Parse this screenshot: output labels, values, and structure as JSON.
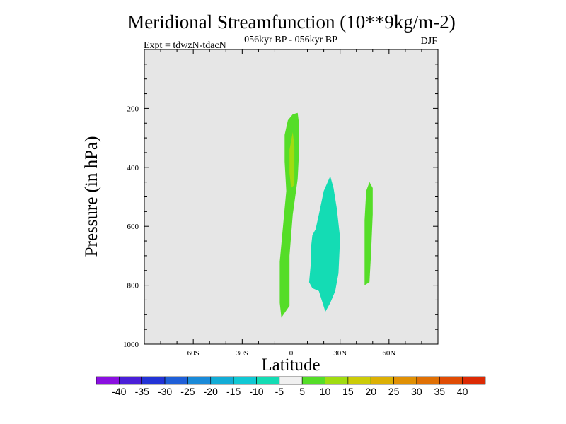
{
  "chart_data": {
    "type": "heatmap",
    "title": "Meridional Streamfunction (10**9kg/m-2)",
    "subtitle_center": "056kyr BP - 056kyr BP",
    "subtitle_left": "Expt = tdwzN-tdacN",
    "subtitle_right": "DJF",
    "xlabel": "Latitude",
    "ylabel": "Pressure (in hPa)",
    "xlim": [
      -90,
      90
    ],
    "ylim": [
      1000,
      0
    ],
    "x_ticks": [
      {
        "value": -60,
        "label": "60S"
      },
      {
        "value": -30,
        "label": "30S"
      },
      {
        "value": 0,
        "label": "0"
      },
      {
        "value": 30,
        "label": "30N"
      },
      {
        "value": 60,
        "label": "60N"
      }
    ],
    "y_ticks": [
      {
        "value": 200,
        "label": "200"
      },
      {
        "value": 400,
        "label": "400"
      },
      {
        "value": 600,
        "label": "600"
      },
      {
        "value": 800,
        "label": "800"
      },
      {
        "value": 1000,
        "label": "1000"
      }
    ],
    "background_color": "#e6e6e6",
    "colorbar": {
      "levels": [
        -40,
        -35,
        -30,
        -25,
        -20,
        -15,
        -10,
        -5,
        5,
        10,
        15,
        20,
        25,
        30,
        35,
        40
      ],
      "labels": [
        "-40",
        "-35",
        "-30",
        "-25",
        "-20",
        "-15",
        "-10",
        "-5",
        "5",
        "10",
        "15",
        "20",
        "25",
        "30",
        "35",
        "40"
      ],
      "colors": [
        "#8a0fe0",
        "#4a1fd8",
        "#2233d6",
        "#1f5fd8",
        "#1a8ad8",
        "#12acd6",
        "#10c8d4",
        "#14dcb4",
        "#f0f0f0",
        "#55dd28",
        "#a0dc10",
        "#cccc08",
        "#dcb004",
        "#e09004",
        "#e07004",
        "#e04c04",
        "#dc2a04"
      ]
    },
    "regions": [
      {
        "name": "positive 5-10",
        "level_range": [
          5,
          10
        ],
        "color": "#55dd28",
        "points": [
          [
            1,
            220
          ],
          [
            4,
            215
          ],
          [
            5,
            260
          ],
          [
            5,
            330
          ],
          [
            4,
            440
          ],
          [
            1,
            560
          ],
          [
            -1,
            700
          ],
          [
            -1,
            810
          ],
          [
            -1,
            870
          ],
          [
            -6,
            910
          ],
          [
            -7,
            860
          ],
          [
            -7,
            720
          ],
          [
            -5,
            600
          ],
          [
            -3,
            480
          ],
          [
            -4,
            380
          ],
          [
            -4,
            290
          ],
          [
            -2,
            240
          ]
        ]
      },
      {
        "name": "positive 10-15",
        "level_range": [
          10,
          15
        ],
        "color": "#a0dc10",
        "points": [
          [
            1,
            280
          ],
          [
            2,
            330
          ],
          [
            2,
            420
          ],
          [
            2,
            460
          ],
          [
            0,
            470
          ],
          [
            -1,
            420
          ],
          [
            -1,
            340
          ]
        ]
      },
      {
        "name": "positive 5-10 north",
        "level_range": [
          5,
          10
        ],
        "color": "#55dd28",
        "points": [
          [
            48,
            450
          ],
          [
            50,
            470
          ],
          [
            50,
            560
          ],
          [
            49,
            690
          ],
          [
            48,
            790
          ],
          [
            45,
            800
          ],
          [
            45,
            690
          ],
          [
            45,
            580
          ],
          [
            46,
            480
          ]
        ]
      },
      {
        "name": "negative -10 to -5",
        "level_range": [
          -10,
          -5
        ],
        "color": "#14dcb4",
        "points": [
          [
            24,
            430
          ],
          [
            26,
            470
          ],
          [
            28,
            540
          ],
          [
            30,
            640
          ],
          [
            29,
            760
          ],
          [
            27,
            820
          ],
          [
            24,
            860
          ],
          [
            21,
            890
          ],
          [
            17,
            820
          ],
          [
            13,
            810
          ],
          [
            11,
            790
          ],
          [
            12,
            730
          ],
          [
            12,
            680
          ],
          [
            13,
            630
          ],
          [
            15,
            610
          ],
          [
            17,
            560
          ],
          [
            20,
            480
          ]
        ]
      }
    ]
  }
}
